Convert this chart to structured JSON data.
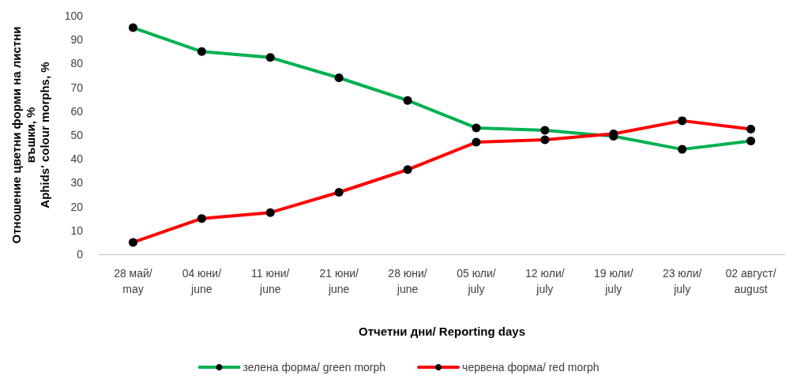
{
  "chart_data": {
    "type": "line",
    "xlabel": "Отчетни дни/ Reporting days",
    "ylabel": "Отношение цветни форми на листни\nвъшки, %\nAphids' colour morphs, %",
    "categories": [
      "28 май/\nmay",
      "04 юни/\njune",
      "11 юни/\njune",
      "21 юни/\njune",
      "28 юни/\njune",
      "05 юли/\njuly",
      "12 юли/\njuly",
      "19 юли/\njuly",
      "23 юли/\njuly",
      "02 август/\naugust"
    ],
    "series": [
      {
        "name": "зелена форма/ green morph",
        "color": "#00b050",
        "values": [
          95,
          85,
          82.5,
          74,
          64.5,
          53,
          52,
          49.5,
          44,
          47.5
        ]
      },
      {
        "name": "червена форма/ red morph",
        "color": "#ff0000",
        "values": [
          5,
          15,
          17.5,
          26,
          35.5,
          47,
          48,
          50.5,
          56,
          52.5
        ]
      }
    ],
    "ylim": [
      0,
      100
    ],
    "yticks": [
      0,
      10,
      20,
      30,
      40,
      50,
      60,
      70,
      80,
      90,
      100
    ],
    "grid": false,
    "legend": "bottom",
    "marker": "circle",
    "line_style": "solid"
  }
}
